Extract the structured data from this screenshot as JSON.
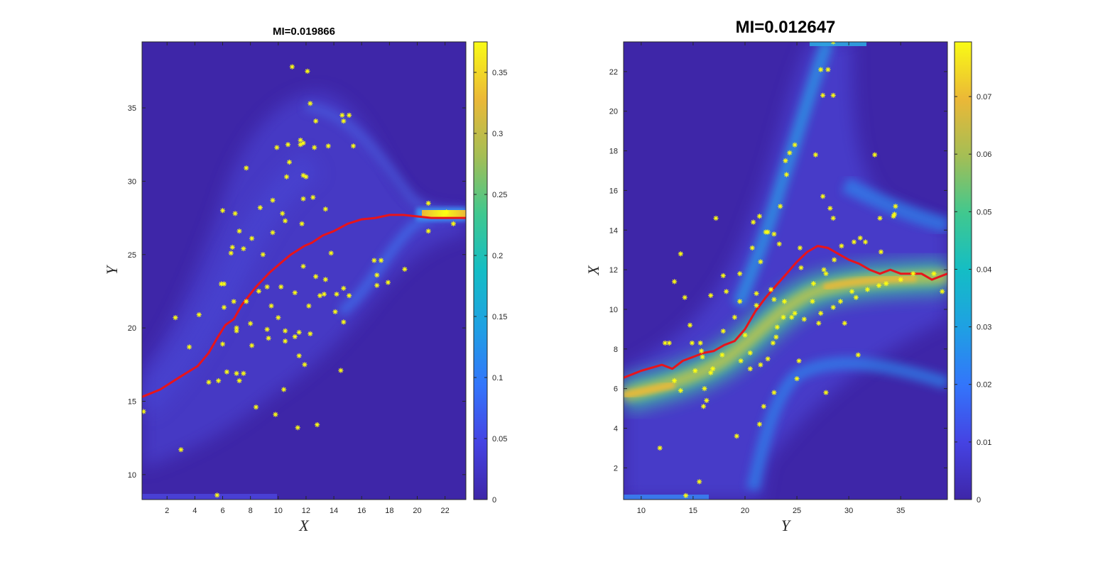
{
  "chart_data": [
    {
      "type": "heatmap",
      "title": "MI=0.019866",
      "xlabel": "X",
      "ylabel": "Y",
      "xlim": [
        0.2,
        23.5
      ],
      "ylim": [
        8.3,
        39.5
      ],
      "xticks": [
        2,
        4,
        6,
        8,
        10,
        12,
        14,
        16,
        18,
        20,
        22
      ],
      "yticks": [
        10,
        15,
        20,
        25,
        30,
        35
      ],
      "colorbar": {
        "lim": [
          0,
          0.375
        ],
        "ticks": [
          "0",
          "0.05",
          "0.1",
          "0.15",
          "0.2",
          "0.25",
          "0.3",
          "0.35"
        ]
      },
      "grid": false,
      "series": [
        {
          "type": "line",
          "color": "#e8141b",
          "x": [
            0.2,
            1.5,
            3,
            4.2,
            5,
            5.6,
            6.2,
            6.8,
            7.4,
            7.9,
            8.4,
            8.9,
            9.4,
            9.9,
            10.4,
            10.9,
            11.4,
            11.9,
            12.4,
            13.2,
            14,
            15,
            16,
            17,
            18,
            19,
            20,
            21,
            22,
            23.5
          ],
          "y": [
            15.3,
            15.8,
            16.7,
            17.4,
            18.3,
            19.3,
            20.2,
            20.6,
            21.6,
            22.2,
            22.8,
            23.3,
            23.8,
            24.2,
            24.6,
            25.0,
            25.3,
            25.6,
            25.8,
            26.3,
            26.6,
            27.1,
            27.4,
            27.5,
            27.7,
            27.7,
            27.6,
            27.5,
            27.5,
            27.5
          ]
        },
        {
          "type": "scatter",
          "color": "#ffff10",
          "x": [
            11.0,
            12.1,
            12.3,
            10.7,
            14.6,
            15.1,
            12.7,
            14.7,
            15.4,
            11.8,
            9.9,
            11.6,
            11.6,
            12.6,
            13.6,
            10.8,
            7.7,
            11.8,
            10.6,
            12.0,
            11.8,
            9.6,
            8.7,
            6.0,
            12.5,
            13.4,
            8.1,
            10.3,
            6.9,
            10.5,
            11.7,
            7.2,
            6.7,
            9.6,
            6.1,
            6.6,
            7.5,
            8.9,
            13.4,
            12.7,
            13.0,
            14.2,
            13.3,
            10.2,
            11.2,
            9.2,
            11.8,
            14.7,
            15.1,
            5.9,
            6.8,
            6.1,
            7.7,
            9.5,
            12.2,
            13.8,
            14.1,
            8.6,
            10.0,
            11.5,
            17.4,
            17.1,
            16.9,
            17.9,
            19.1,
            17.1,
            4.3,
            2.6,
            7.0,
            10.5,
            14.7,
            7.0,
            8.0,
            9.2,
            11.5,
            8.1,
            9.3,
            10.5,
            11.2,
            12.3,
            6.0,
            6.3,
            3.6,
            7.5,
            14.5,
            11.9,
            5.0,
            5.7,
            7.2,
            7.0,
            12.8,
            10.4,
            0.3,
            8.4,
            9.8,
            11.4,
            3.0,
            5.6,
            20.8,
            22.1,
            20.8,
            22.6
          ],
          "y": [
            37.8,
            37.5,
            35.3,
            32.5,
            34.5,
            34.5,
            34.1,
            34.1,
            32.4,
            32.6,
            32.3,
            32.8,
            32.5,
            32.3,
            32.4,
            31.3,
            30.9,
            30.4,
            30.3,
            30.3,
            28.8,
            28.7,
            28.2,
            28.0,
            28.9,
            28.1,
            26.1,
            27.8,
            27.8,
            27.3,
            27.1,
            26.6,
            25.5,
            26.5,
            23.0,
            25.1,
            25.4,
            25.0,
            23.3,
            23.5,
            22.2,
            22.3,
            22.3,
            22.8,
            22.4,
            22.8,
            24.2,
            22.7,
            22.2,
            23.0,
            21.8,
            21.4,
            21.8,
            21.5,
            21.5,
            25.1,
            21.1,
            22.5,
            20.7,
            19.7,
            24.6,
            23.6,
            24.6,
            23.1,
            24.0,
            22.9,
            20.9,
            20.7,
            20.0,
            19.8,
            20.4,
            19.8,
            20.3,
            19.9,
            18.1,
            18.8,
            19.3,
            19.1,
            19.4,
            19.6,
            18.9,
            17.0,
            18.7,
            16.9,
            17.1,
            17.5,
            16.3,
            16.4,
            16.4,
            16.9,
            13.4,
            15.8,
            14.3,
            14.6,
            14.1,
            13.2,
            11.7,
            8.6,
            28.5,
            27.9,
            26.6,
            27.1
          ]
        }
      ]
    },
    {
      "type": "heatmap",
      "title": "MI=0.012647",
      "xlabel": "Y",
      "ylabel": "X",
      "xlim": [
        8.3,
        39.5
      ],
      "ylim": [
        0.4,
        23.5
      ],
      "xticks": [
        10,
        15,
        20,
        25,
        30,
        35
      ],
      "yticks": [
        2,
        4,
        6,
        8,
        10,
        12,
        14,
        16,
        18,
        20,
        22
      ],
      "colorbar": {
        "lim": [
          0,
          0.0795
        ],
        "ticks": [
          "0",
          "0.01",
          "0.02",
          "0.03",
          "0.04",
          "0.05",
          "0.06",
          "0.07"
        ]
      },
      "grid": false,
      "series": [
        {
          "type": "line",
          "color": "#e8141b",
          "x": [
            8.3,
            10,
            12,
            13,
            14,
            15,
            16,
            17,
            18,
            19,
            20,
            21,
            22,
            23,
            24,
            25,
            26,
            27,
            28,
            29,
            30,
            31,
            32,
            33,
            34,
            35,
            36,
            37,
            38,
            39.5
          ],
          "y": [
            6.55,
            6.9,
            7.2,
            7.0,
            7.4,
            7.6,
            7.8,
            7.9,
            8.2,
            8.4,
            9.0,
            9.9,
            10.6,
            11.2,
            11.8,
            12.4,
            12.9,
            13.2,
            13.1,
            12.8,
            12.5,
            12.3,
            12.0,
            11.8,
            12.0,
            11.8,
            11.8,
            11.8,
            11.5,
            11.8
          ]
        },
        {
          "type": "scatter",
          "color": "#ffff10",
          "x": [
            28.5,
            27.3,
            28.0,
            27.5,
            28.5,
            24.8,
            24.3,
            26.8,
            32.5,
            23.9,
            24.0,
            23.4,
            21.4,
            20.8,
            22.2,
            22.8,
            20.7,
            17.2,
            21.5,
            22.0,
            23.3,
            25.3,
            28.5,
            31.6,
            33.1,
            34.5,
            34.4,
            27.5,
            28.2,
            19.5,
            17.9,
            18.2,
            17.9,
            19.5,
            13.8,
            13.2,
            14.7,
            16.7,
            12.7,
            14.9,
            15.8,
            15.9,
            25.4,
            27.6,
            22.5,
            21.1,
            24.8,
            26.5,
            29.2,
            28.5,
            24.5,
            23.7,
            22.8,
            21.1,
            25.7,
            27.1,
            29.6,
            27.3,
            30.3,
            30.7,
            31.8,
            32.9,
            33.6,
            35.0,
            36.2,
            38.2,
            39.0,
            34.3,
            33.0,
            31.1,
            30.5,
            29.3,
            28.6,
            27.8,
            26.6,
            23.8,
            23.1,
            23.0,
            22.7,
            25.2,
            25.0,
            22.2,
            21.5,
            20.5,
            20.5,
            19.6,
            20.0,
            19.0,
            17.8,
            16.9,
            16.7,
            16.3,
            16.0,
            15.2,
            13.2,
            13.8,
            12.3,
            15.7,
            16.1,
            14.2,
            21.8,
            22.8,
            19.2,
            21.4,
            11.8,
            15.6,
            14.3,
            27.8,
            30.9
          ],
          "y": [
            23.5,
            22.1,
            22.1,
            20.8,
            20.8,
            18.3,
            17.9,
            17.8,
            17.8,
            17.5,
            16.8,
            15.2,
            14.7,
            14.4,
            13.9,
            13.8,
            13.1,
            14.6,
            12.4,
            13.9,
            13.3,
            13.1,
            14.6,
            13.4,
            12.9,
            15.2,
            14.8,
            15.7,
            15.1,
            11.8,
            11.7,
            10.9,
            8.9,
            10.4,
            12.8,
            11.4,
            9.2,
            10.7,
            8.3,
            8.3,
            7.9,
            7.6,
            12.1,
            12.0,
            11.0,
            10.8,
            9.8,
            10.4,
            10.4,
            10.1,
            9.6,
            9.6,
            10.5,
            10.2,
            9.5,
            9.3,
            9.3,
            9.8,
            10.9,
            10.6,
            11.0,
            11.2,
            11.3,
            11.5,
            11.8,
            11.8,
            10.9,
            14.7,
            14.6,
            13.6,
            13.4,
            13.2,
            12.5,
            11.8,
            11.3,
            10.4,
            9.1,
            8.6,
            8.3,
            7.4,
            6.5,
            7.5,
            7.2,
            7.8,
            7.0,
            7.4,
            8.7,
            9.6,
            7.7,
            7.0,
            6.8,
            5.4,
            5.1,
            6.9,
            6.4,
            5.9,
            8.3,
            8.3,
            6.0,
            10.6,
            5.1,
            5.8,
            3.6,
            4.2,
            3.0,
            1.3,
            0.6,
            5.8,
            7.7
          ]
        }
      ]
    }
  ]
}
